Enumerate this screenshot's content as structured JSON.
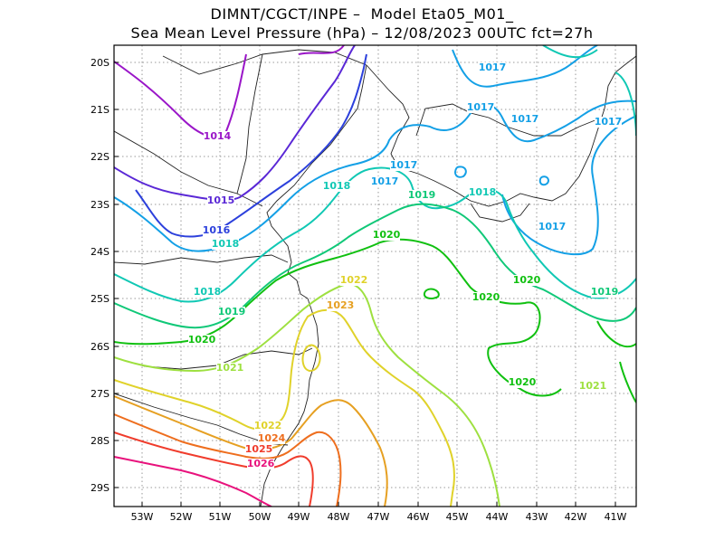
{
  "title": {
    "line1": "DIMNT/CGCT/INPE –  Model Eta05_M01_",
    "line2": "Sea Mean Level Pressure (hPa) – 12/08/2023 00UTC fct=27h"
  },
  "axes": {
    "x_ticks": [
      "53W",
      "52W",
      "51W",
      "50W",
      "49W",
      "48W",
      "47W",
      "46W",
      "45W",
      "44W",
      "43W",
      "42W",
      "41W"
    ],
    "y_ticks": [
      "20S",
      "21S",
      "22S",
      "23S",
      "24S",
      "25S",
      "26S",
      "27S",
      "28S",
      "29S"
    ]
  },
  "colors": {
    "1014": "#9a16c8",
    "1015": "#5a28d6",
    "1016": "#2c40dc",
    "1017": "#14a0e6",
    "1018": "#10c8b4",
    "1019": "#10c878",
    "1020": "#10c010",
    "1021": "#9ee040",
    "1022": "#e0d22a",
    "1023": "#e6a022",
    "1024": "#ee6e1e",
    "1025": "#f03c2c",
    "1026": "#e8127c"
  },
  "contour_labels": [
    {
      "text": "1014",
      "level": "1014"
    },
    {
      "text": "1015",
      "level": "1015"
    },
    {
      "text": "1016",
      "level": "1016"
    },
    {
      "text": "1017",
      "level": "1017"
    },
    {
      "text": "1017",
      "level": "1017"
    },
    {
      "text": "1017",
      "level": "1017"
    },
    {
      "text": "1017",
      "level": "1017"
    },
    {
      "text": "1017",
      "level": "1017"
    },
    {
      "text": "1017",
      "level": "1017"
    },
    {
      "text": "1017",
      "level": "1017"
    },
    {
      "text": "1018",
      "level": "1018"
    },
    {
      "text": "1018",
      "level": "1018"
    },
    {
      "text": "1018",
      "level": "1018"
    },
    {
      "text": "1018",
      "level": "1018"
    },
    {
      "text": "1019",
      "level": "1019"
    },
    {
      "text": "1019",
      "level": "1019"
    },
    {
      "text": "1019",
      "level": "1019"
    },
    {
      "text": "1020",
      "level": "1020"
    },
    {
      "text": "1020",
      "level": "1020"
    },
    {
      "text": "1020",
      "level": "1020"
    },
    {
      "text": "1020",
      "level": "1020"
    },
    {
      "text": "1020",
      "level": "1020"
    },
    {
      "text": "1021",
      "level": "1021"
    },
    {
      "text": "1021",
      "level": "1021"
    },
    {
      "text": "1022",
      "level": "1022"
    },
    {
      "text": "1022",
      "level": "1022"
    },
    {
      "text": "1023",
      "level": "1023"
    },
    {
      "text": "1024",
      "level": "1024"
    },
    {
      "text": "1025",
      "level": "1025"
    },
    {
      "text": "1026",
      "level": "1026"
    }
  ]
}
